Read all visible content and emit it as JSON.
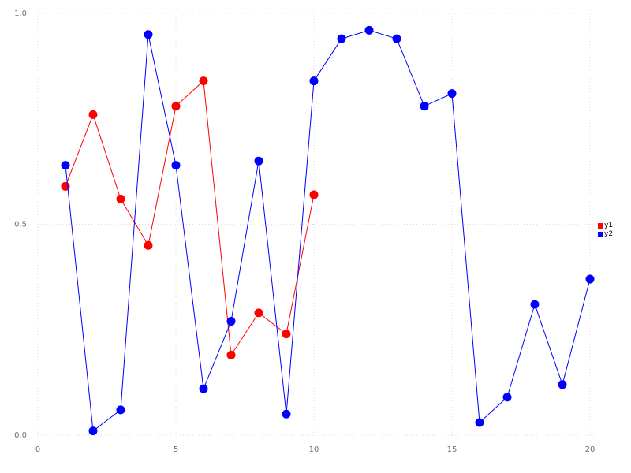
{
  "chart_data": {
    "type": "line",
    "title": "",
    "xlabel": "",
    "ylabel": "",
    "xlim": [
      0,
      20
    ],
    "ylim": [
      0,
      1.0
    ],
    "xticks": [
      0,
      5,
      10,
      15,
      20
    ],
    "xtick_labels": [
      "0",
      "5",
      "10",
      "15",
      "20"
    ],
    "yticks": [
      0,
      0.5,
      1.0
    ],
    "ytick_labels": [
      "0.0",
      "0.5",
      "1.0"
    ],
    "grid": true,
    "grid_style": "dotted",
    "grid_color": "#dcdcdc",
    "tick_color": "#707070",
    "background_color": "#ffffff",
    "legend_position": "right",
    "marker": "circle",
    "series": [
      {
        "name": "y1",
        "color": "#ff0000",
        "x": [
          1,
          2,
          3,
          4,
          5,
          6,
          7,
          8,
          9,
          10
        ],
        "values": [
          0.59,
          0.76,
          0.56,
          0.45,
          0.78,
          0.84,
          0.19,
          0.29,
          0.24,
          0.57
        ]
      },
      {
        "name": "y2",
        "color": "#0000ff",
        "x": [
          1,
          2,
          3,
          4,
          5,
          6,
          7,
          8,
          9,
          10,
          11,
          12,
          13,
          14,
          15,
          16,
          17,
          18,
          19,
          20
        ],
        "values": [
          0.64,
          0.01,
          0.06,
          0.95,
          0.64,
          0.11,
          0.27,
          0.65,
          0.05,
          0.84,
          0.94,
          0.96,
          0.94,
          0.78,
          0.81,
          0.03,
          0.09,
          0.31,
          0.12,
          0.37
        ]
      }
    ]
  },
  "legend": {
    "items": [
      {
        "label": "y1",
        "color": "#ff0000"
      },
      {
        "label": "y2",
        "color": "#0000ff"
      }
    ]
  }
}
